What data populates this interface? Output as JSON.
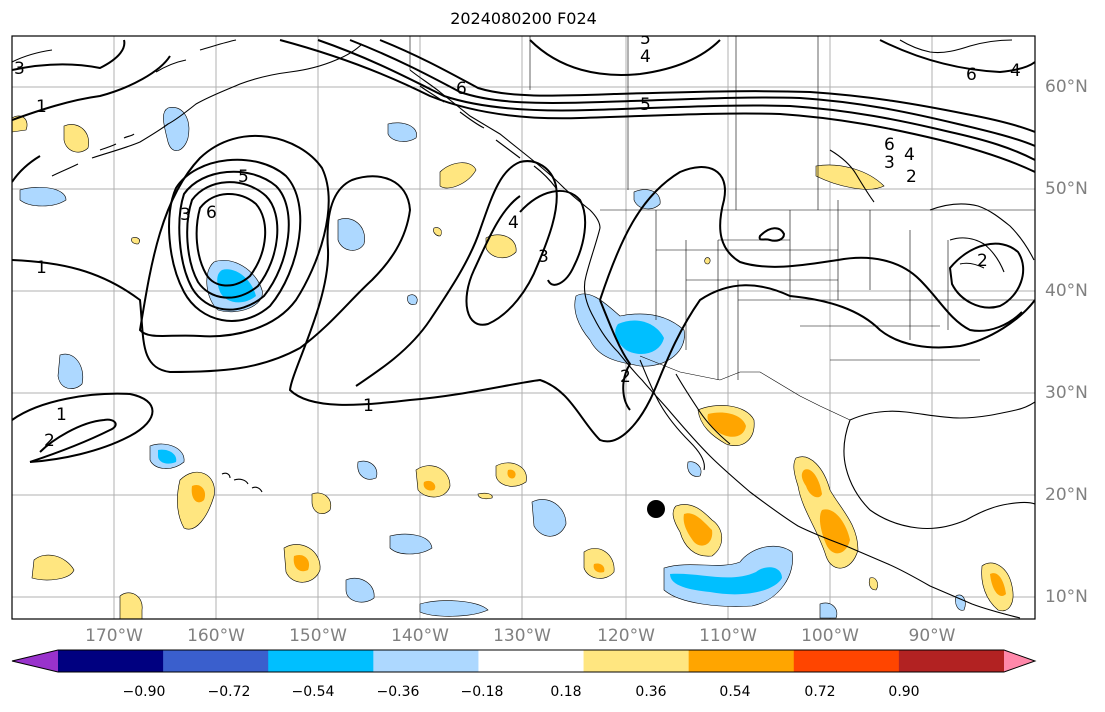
{
  "title": "2024080200 F024",
  "lon_labels": [
    "170°W",
    "160°W",
    "150°W",
    "140°W",
    "130°W",
    "120°W",
    "110°W",
    "100°W",
    "90°W"
  ],
  "lat_labels": [
    "60°N",
    "50°N",
    "40°N",
    "30°N",
    "20°N",
    "10°N"
  ],
  "colorbar": {
    "colors": [
      "#9932cc",
      "#000080",
      "#3a5fcd",
      "#00bfff",
      "#add8ff",
      "#ffffff",
      "#ffe680",
      "#ffa500",
      "#ff4500",
      "#b22222",
      "#ff88aa"
    ],
    "ticks": [
      "−0.90",
      "−0.72",
      "−0.54",
      "−0.36",
      "−0.18",
      "0.18",
      "0.36",
      "0.54",
      "0.72",
      "0.90"
    ]
  },
  "contour_labels": [
    "1",
    "2",
    "3",
    "4",
    "5",
    "6"
  ],
  "colors": {
    "ocean": "#ffffff",
    "land_line": "#000000",
    "grid": "#b0b0b0",
    "positive_fill": "#ffe680",
    "positive_strong": "#ffa500",
    "negative_fill": "#add8ff",
    "negative_strong": "#00bfff"
  }
}
